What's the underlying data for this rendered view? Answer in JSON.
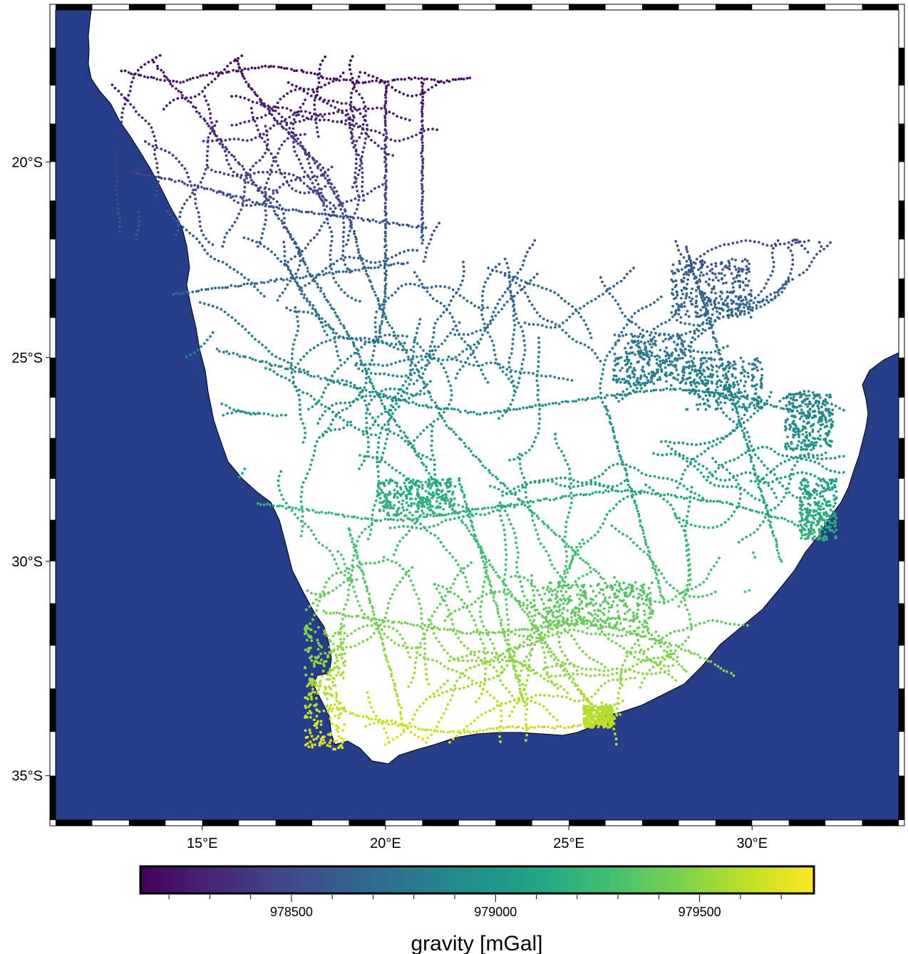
{
  "map": {
    "projection": "Mercator",
    "region": {
      "lon": [
        11,
        34
      ],
      "lat": [
        -36,
        -16
      ]
    },
    "ocean_color": "#263E8A",
    "land_color": "#ffffff",
    "frame": "fancy (alternating black/white border)",
    "lon_ticks": [
      {
        "value": 15,
        "label": "15°E"
      },
      {
        "value": 20,
        "label": "20°E"
      },
      {
        "value": 25,
        "label": "25°E"
      },
      {
        "value": 30,
        "label": "30°E"
      }
    ],
    "lat_ticks": [
      {
        "value": -20,
        "label": "20°S"
      },
      {
        "value": -25,
        "label": "25°S"
      },
      {
        "value": -30,
        "label": "30°S"
      },
      {
        "value": -35,
        "label": "35°S"
      }
    ]
  },
  "colorbar": {
    "cmap": "viridis",
    "range": [
      978130,
      979780
    ],
    "labeled_ticks": [
      {
        "value": 978500,
        "label": "978500"
      },
      {
        "value": 979000,
        "label": "979000"
      },
      {
        "value": 979500,
        "label": "979500"
      }
    ],
    "minor_tick_step": 100,
    "label": "gravity [mGal]"
  },
  "chart_data": {
    "type": "scatter",
    "title": "",
    "xlabel": "",
    "ylabel": "",
    "color_label": "gravity [mGal]",
    "approximate": true,
    "tracks": [
      {
        "name": "",
        "points": [
          [
            13.7,
            -17.4
          ],
          [
            14.2,
            -18.0
          ],
          [
            14.8,
            -18.6
          ],
          [
            15.3,
            -19.2
          ],
          [
            15.8,
            -19.8
          ],
          [
            16.3,
            -20.4
          ],
          [
            16.8,
            -21.0
          ],
          [
            17.2,
            -21.6
          ],
          [
            17.6,
            -22.2
          ],
          [
            17.9,
            -22.8
          ],
          [
            18.3,
            -23.4
          ],
          [
            18.7,
            -24.0
          ],
          [
            19.1,
            -24.6
          ],
          [
            19.4,
            -25.2
          ],
          [
            19.7,
            -25.8
          ],
          [
            20.1,
            -26.4
          ],
          [
            20.6,
            -27.0
          ],
          [
            21.0,
            -27.6
          ],
          [
            21.4,
            -28.2
          ],
          [
            21.9,
            -28.8
          ],
          [
            22.4,
            -29.4
          ],
          [
            22.8,
            -30.0
          ],
          [
            23.3,
            -30.6
          ],
          [
            23.8,
            -31.2
          ],
          [
            24.2,
            -31.8
          ],
          [
            24.8,
            -32.4
          ],
          [
            25.3,
            -33.0
          ],
          [
            25.7,
            -33.5
          ]
        ]
      },
      {
        "name": "",
        "points": [
          [
            15.9,
            -17.3
          ],
          [
            16.2,
            -17.9
          ],
          [
            16.6,
            -18.4
          ],
          [
            17.0,
            -18.9
          ],
          [
            17.5,
            -19.4
          ],
          [
            18.0,
            -19.9
          ],
          [
            18.4,
            -20.5
          ],
          [
            18.8,
            -21.1
          ],
          [
            19.1,
            -21.7
          ],
          [
            19.3,
            -22.4
          ],
          [
            19.6,
            -23.1
          ],
          [
            19.9,
            -23.8
          ],
          [
            20.3,
            -24.5
          ],
          [
            20.8,
            -25.2
          ],
          [
            21.2,
            -25.9
          ],
          [
            21.6,
            -26.6
          ],
          [
            22.2,
            -27.2
          ],
          [
            22.8,
            -27.8
          ],
          [
            23.4,
            -28.3
          ],
          [
            24.0,
            -28.8
          ],
          [
            24.6,
            -29.3
          ],
          [
            25.2,
            -29.8
          ],
          [
            25.8,
            -30.3
          ],
          [
            26.4,
            -30.9
          ],
          [
            27.0,
            -31.5
          ],
          [
            27.6,
            -32.1
          ],
          [
            28.2,
            -32.6
          ]
        ]
      },
      {
        "name": "",
        "points": [
          [
            12.8,
            -17.6
          ],
          [
            13.6,
            -17.8
          ],
          [
            14.4,
            -17.9
          ],
          [
            15.2,
            -17.7
          ],
          [
            16.0,
            -17.6
          ],
          [
            16.8,
            -17.5
          ],
          [
            17.6,
            -17.6
          ],
          [
            18.4,
            -17.8
          ],
          [
            19.2,
            -17.9
          ],
          [
            20.0,
            -17.9
          ],
          [
            20.8,
            -17.8
          ],
          [
            21.6,
            -17.9
          ],
          [
            22.3,
            -17.8
          ]
        ]
      },
      {
        "name": "",
        "points": [
          [
            13.1,
            -20.3
          ],
          [
            13.9,
            -20.4
          ],
          [
            14.7,
            -20.6
          ],
          [
            15.5,
            -20.8
          ],
          [
            16.3,
            -21.0
          ],
          [
            17.1,
            -21.2
          ],
          [
            17.9,
            -21.3
          ],
          [
            18.7,
            -21.4
          ],
          [
            19.5,
            -21.5
          ],
          [
            20.3,
            -21.6
          ],
          [
            21.1,
            -21.7
          ]
        ]
      },
      {
        "name": "",
        "points": [
          [
            14.2,
            -23.4
          ],
          [
            15.0,
            -23.3
          ],
          [
            15.8,
            -23.2
          ],
          [
            16.6,
            -23.1
          ],
          [
            17.4,
            -23.0
          ],
          [
            18.2,
            -22.9
          ],
          [
            19.0,
            -22.8
          ],
          [
            19.8,
            -22.7
          ],
          [
            20.6,
            -22.6
          ]
        ]
      },
      {
        "name": "",
        "points": [
          [
            15.4,
            -24.8
          ],
          [
            16.2,
            -25.0
          ],
          [
            17.0,
            -25.2
          ],
          [
            17.8,
            -25.4
          ],
          [
            18.6,
            -25.6
          ],
          [
            19.4,
            -25.8
          ],
          [
            20.2,
            -26.0
          ],
          [
            21.0,
            -26.2
          ],
          [
            21.8,
            -26.3
          ],
          [
            22.6,
            -26.4
          ],
          [
            23.4,
            -26.3
          ],
          [
            24.2,
            -26.2
          ],
          [
            25.0,
            -26.1
          ],
          [
            25.8,
            -26.0
          ],
          [
            26.6,
            -25.9
          ],
          [
            27.4,
            -25.8
          ],
          [
            28.2,
            -25.8
          ],
          [
            29.0,
            -25.9
          ],
          [
            29.8,
            -26.0
          ],
          [
            30.6,
            -26.2
          ],
          [
            31.4,
            -26.4
          ],
          [
            32.2,
            -26.6
          ]
        ]
      },
      {
        "name": "",
        "points": [
          [
            16.5,
            -28.6
          ],
          [
            17.3,
            -28.7
          ],
          [
            18.1,
            -28.8
          ],
          [
            18.9,
            -28.9
          ],
          [
            19.7,
            -29.0
          ],
          [
            20.5,
            -29.0
          ],
          [
            21.3,
            -28.9
          ],
          [
            22.1,
            -28.8
          ],
          [
            22.9,
            -28.7
          ],
          [
            23.7,
            -28.6
          ],
          [
            24.5,
            -28.5
          ],
          [
            25.3,
            -28.4
          ],
          [
            26.1,
            -28.3
          ],
          [
            26.9,
            -28.3
          ],
          [
            27.7,
            -28.4
          ],
          [
            28.5,
            -28.5
          ],
          [
            29.3,
            -28.6
          ],
          [
            30.1,
            -28.8
          ],
          [
            30.9,
            -29.0
          ],
          [
            31.7,
            -29.3
          ]
        ]
      },
      {
        "name": "",
        "points": [
          [
            18.3,
            -31.2
          ],
          [
            19.1,
            -31.3
          ],
          [
            19.9,
            -31.4
          ],
          [
            20.7,
            -31.5
          ],
          [
            21.5,
            -31.6
          ],
          [
            22.3,
            -31.7
          ],
          [
            23.1,
            -31.7
          ],
          [
            23.9,
            -31.6
          ],
          [
            24.7,
            -31.5
          ],
          [
            25.5,
            -31.5
          ],
          [
            26.3,
            -31.6
          ],
          [
            27.1,
            -31.8
          ],
          [
            27.9,
            -32.0
          ],
          [
            28.7,
            -32.3
          ],
          [
            29.5,
            -32.7
          ]
        ]
      },
      {
        "name": "",
        "points": [
          [
            18.4,
            -33.4
          ],
          [
            19.2,
            -33.6
          ],
          [
            20.0,
            -33.8
          ],
          [
            20.8,
            -33.9
          ],
          [
            21.6,
            -34.0
          ],
          [
            22.4,
            -34.0
          ],
          [
            23.2,
            -33.9
          ],
          [
            24.0,
            -33.9
          ],
          [
            24.8,
            -33.9
          ],
          [
            25.6,
            -33.8
          ],
          [
            26.4,
            -33.6
          ]
        ]
      },
      {
        "name": "",
        "points": [
          [
            28.2,
            -22.2
          ],
          [
            28.4,
            -22.8
          ],
          [
            28.6,
            -23.4
          ],
          [
            28.8,
            -24.0
          ],
          [
            29.0,
            -24.6
          ],
          [
            29.2,
            -25.2
          ],
          [
            29.4,
            -25.8
          ],
          [
            29.6,
            -26.4
          ],
          [
            29.8,
            -27.0
          ],
          [
            30.0,
            -27.6
          ],
          [
            30.2,
            -28.2
          ],
          [
            30.4,
            -28.8
          ],
          [
            30.6,
            -29.4
          ],
          [
            30.8,
            -30.0
          ]
        ]
      },
      {
        "name": "",
        "points": [
          [
            22.0,
            -28.0
          ],
          [
            22.2,
            -28.6
          ],
          [
            22.4,
            -29.2
          ],
          [
            22.6,
            -29.8
          ],
          [
            22.8,
            -30.4
          ],
          [
            23.0,
            -31.0
          ],
          [
            23.2,
            -31.6
          ],
          [
            23.4,
            -32.2
          ],
          [
            23.6,
            -32.8
          ],
          [
            23.8,
            -33.4
          ]
        ]
      },
      {
        "name": "",
        "points": [
          [
            19.0,
            -29.2
          ],
          [
            19.2,
            -29.8
          ],
          [
            19.4,
            -30.4
          ],
          [
            19.6,
            -31.0
          ],
          [
            19.8,
            -31.6
          ],
          [
            20.0,
            -32.2
          ],
          [
            20.2,
            -32.8
          ],
          [
            20.4,
            -33.4
          ],
          [
            20.5,
            -34.0
          ]
        ]
      },
      {
        "name": "",
        "points": [
          [
            26.0,
            -26.2
          ],
          [
            26.2,
            -26.8
          ],
          [
            26.4,
            -27.4
          ],
          [
            26.6,
            -28.0
          ],
          [
            26.8,
            -28.6
          ],
          [
            27.0,
            -29.2
          ],
          [
            27.2,
            -29.8
          ],
          [
            27.4,
            -30.4
          ],
          [
            27.6,
            -31.0
          ]
        ]
      },
      {
        "name": "",
        "points": [
          [
            20.0,
            -18.0
          ],
          [
            20.0,
            -18.6
          ],
          [
            20.0,
            -19.2
          ],
          [
            20.0,
            -19.8
          ],
          [
            20.0,
            -20.4
          ],
          [
            20.0,
            -21.0
          ],
          [
            20.0,
            -21.6
          ],
          [
            20.0,
            -22.2
          ],
          [
            20.0,
            -22.8
          ],
          [
            20.0,
            -23.4
          ],
          [
            19.9,
            -24.0
          ],
          [
            19.8,
            -24.6
          ]
        ]
      },
      {
        "name": "",
        "points": [
          [
            21.0,
            -17.9
          ],
          [
            21.0,
            -18.5
          ],
          [
            21.0,
            -19.1
          ],
          [
            21.0,
            -19.7
          ],
          [
            21.0,
            -20.3
          ],
          [
            21.0,
            -20.9
          ],
          [
            21.0,
            -21.5
          ],
          [
            21.0,
            -22.1
          ]
        ]
      }
    ],
    "dense_survey_blocks": [
      {
        "lon": [
          19.8,
          21.9
        ],
        "lat": [
          -28.0,
          -28.9
        ]
      },
      {
        "lon": [
          27.8,
          30.0
        ],
        "lat": [
          -22.5,
          -24.0
        ]
      },
      {
        "lon": [
          26.2,
          28.2
        ],
        "lat": [
          -24.4,
          -25.7
        ]
      },
      {
        "lon": [
          28.2,
          30.3
        ],
        "lat": [
          -25.0,
          -26.3
        ]
      },
      {
        "lon": [
          30.9,
          32.2
        ],
        "lat": [
          -25.9,
          -27.3
        ]
      },
      {
        "lon": [
          24.3,
          27.3
        ],
        "lat": [
          -30.5,
          -31.6
        ]
      },
      {
        "lon": [
          17.8,
          18.9
        ],
        "lat": [
          -31.5,
          -34.4
        ]
      },
      {
        "lon": [
          25.4,
          26.2
        ],
        "lat": [
          -33.4,
          -33.9
        ]
      },
      {
        "lon": [
          31.3,
          32.3
        ],
        "lat": [
          -28.0,
          -29.5
        ]
      }
    ],
    "gravity_model": "increases southward: ~978150 mGal near 17.5°S, ~979700 mGal near 34.5°S",
    "value_range": [
      978130,
      979780
    ],
    "colorbar_ticks": [
      978500,
      979000,
      979500
    ]
  }
}
